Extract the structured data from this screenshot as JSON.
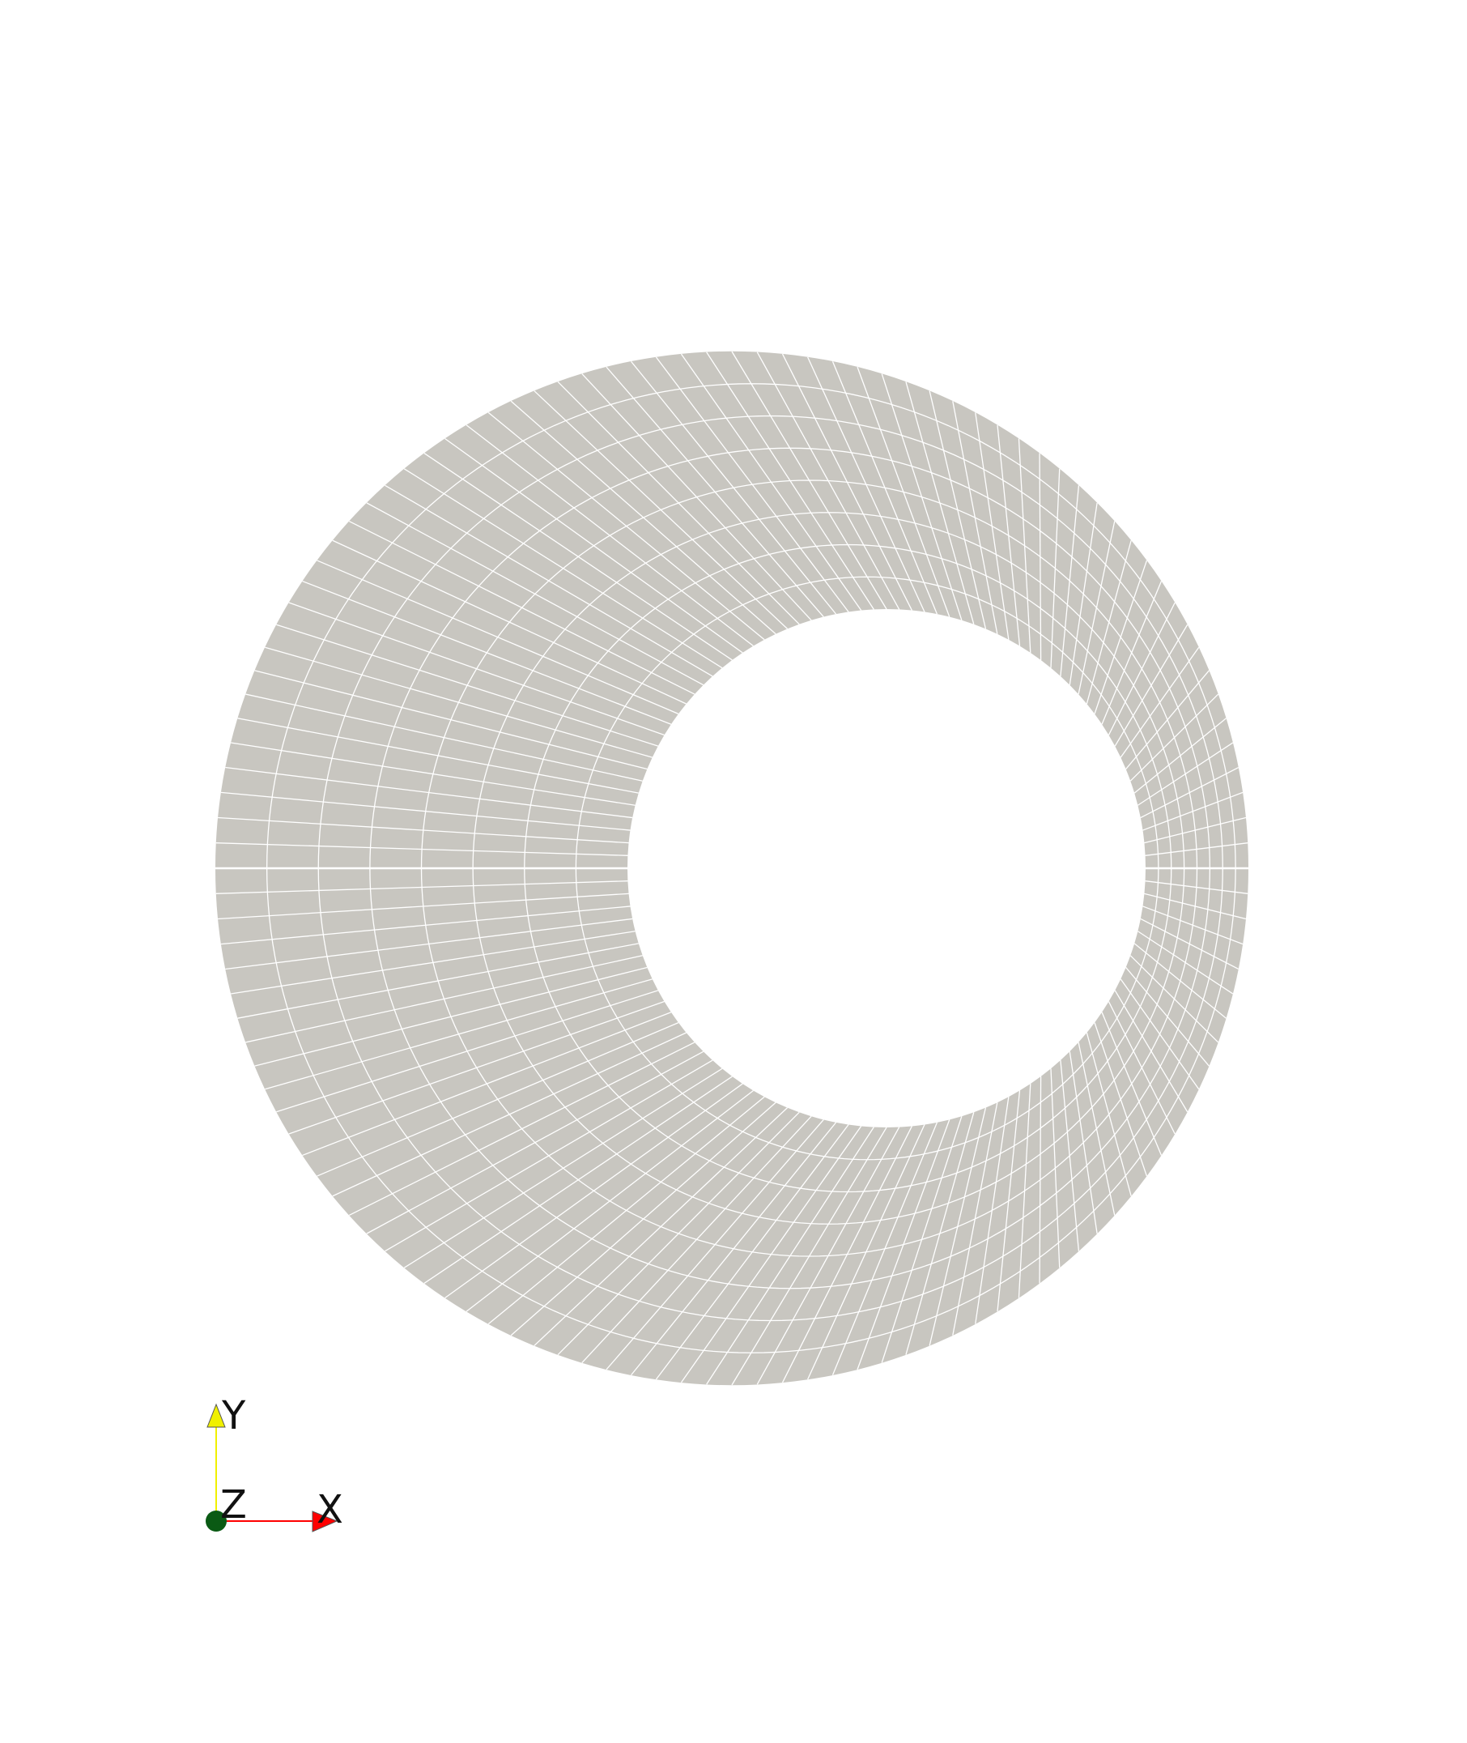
{
  "mesh": {
    "face_color": "#c8c6c0",
    "edge_color": "#ffffff",
    "background_color": "#ffffff",
    "radial_divisions_per_half": 64,
    "ring_divisions": 8
  },
  "orientation_axes": {
    "x": {
      "label": "X",
      "color": "#ff0000"
    },
    "y": {
      "label": "Y",
      "color": "#f0f000"
    },
    "z": {
      "label": "Z",
      "color": "#0a5a14"
    }
  }
}
